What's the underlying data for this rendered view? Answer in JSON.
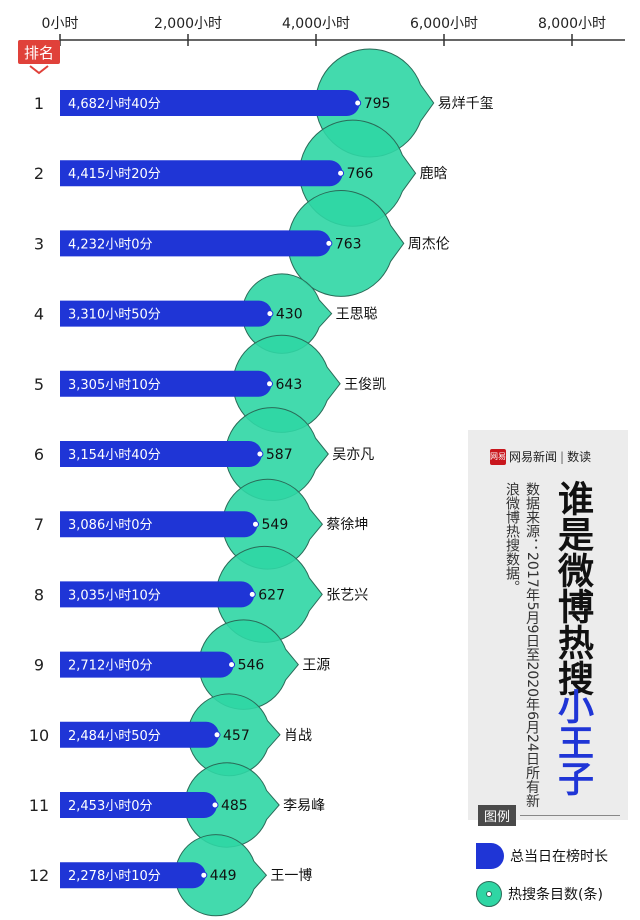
{
  "rank_header": "排名",
  "chart_data": {
    "type": "bar",
    "x_ticks": [
      "0小时",
      "2,000小时",
      "4,000小时",
      "6,000小时",
      "8,000小时"
    ],
    "x_tick_values": [
      0,
      2000,
      4000,
      6000,
      8000
    ],
    "xlim": [
      0,
      8000
    ],
    "categories": [
      "易烊千玺",
      "鹿晗",
      "周杰伦",
      "王思聪",
      "王俊凯",
      "吴亦凡",
      "蔡徐坤",
      "张艺兴",
      "王源",
      "肖战",
      "李易峰",
      "王一博"
    ],
    "ranks": [
      "1",
      "2",
      "3",
      "4",
      "5",
      "6",
      "7",
      "8",
      "9",
      "10",
      "11",
      "12"
    ],
    "series": [
      {
        "name": "总当日在榜时长",
        "values": [
          4682.67,
          4415.33,
          4232,
          3310.83,
          3305.17,
          3154.67,
          3086,
          3035.17,
          2712,
          2484.83,
          2453,
          2278.17
        ],
        "labels": [
          "4,682小时40分",
          "4,415小时20分",
          "4,232小时0分",
          "3,310小时50分",
          "3,305小时10分",
          "3,154小时40分",
          "3,086小时0分",
          "3,035小时10分",
          "2,712小时0分",
          "2,484小时50分",
          "2,453小时0分",
          "2,278小时10分"
        ],
        "color": "#1f35d6"
      },
      {
        "name": "热搜条目数(条)",
        "values": [
          795,
          766,
          763,
          430,
          643,
          587,
          549,
          627,
          546,
          457,
          485,
          449
        ],
        "color": "#2fd6a4"
      }
    ]
  },
  "credit": {
    "logo_mark": "网易",
    "logo_text": "网易新闻",
    "logo_separator": "|",
    "logo_sub": "数读",
    "source": "数据来源：2017年5月9日至2020年6月24日所有新浪微博热搜数据。",
    "title_main": "谁是微博热搜",
    "title_accent": "小王子"
  },
  "legend": {
    "title": "图例",
    "bar_label": "总当日在榜时长",
    "bubble_label": "热搜条目数(条)"
  }
}
